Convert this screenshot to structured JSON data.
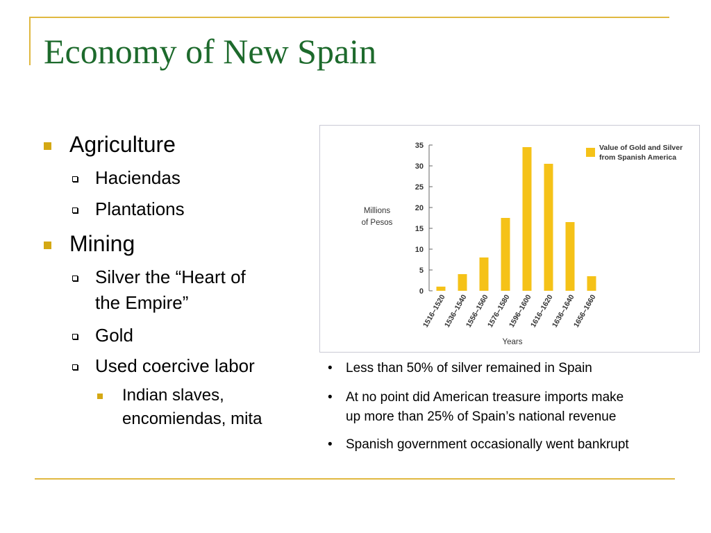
{
  "slide": {
    "title": "Economy of New Spain",
    "accent_color": "#e0b840",
    "title_color": "#1d6a2c",
    "bullet_color": "#d4a814"
  },
  "outline": {
    "agriculture": "Agriculture",
    "haciendas": "Haciendas",
    "plantations": "Plantations",
    "mining": "Mining",
    "silver_line1": "Silver the “Heart of",
    "silver_line2": "the Empire”",
    "gold": "Gold",
    "coercive": "Used coercive labor",
    "indian_line1": "Indian slaves,",
    "indian_line2": "encomiendas, mita"
  },
  "notes": {
    "bullet_char": "•",
    "items": [
      "Less than 50% of silver remained in Spain",
      "At no point did American treasure imports make",
      "up more than 25% of Spain’s national revenue",
      "Spanish government occasionally went bankrupt"
    ]
  },
  "chart_data": {
    "type": "bar",
    "categories": [
      "1516–1520",
      "1536–1540",
      "1556–1560",
      "1576–1580",
      "1596–1600",
      "1616–1620",
      "1636–1640",
      "1656–1660"
    ],
    "series": [
      {
        "name": "Value of Gold and Silver from Spanish America",
        "values": [
          1,
          4,
          8,
          17.5,
          34.5,
          30.5,
          16.5,
          3.5
        ]
      }
    ],
    "legend_lines": [
      "Value of Gold and Silver",
      "from Spanish America"
    ],
    "ylabel_lines": [
      "Millions",
      "of Pesos"
    ],
    "xlabel": "Years",
    "yticks": [
      0,
      5,
      10,
      15,
      20,
      25,
      30,
      35
    ],
    "ylim": [
      0,
      35
    ],
    "bar_color": "#f5c218",
    "legend_position": "top-right",
    "grid": false
  }
}
